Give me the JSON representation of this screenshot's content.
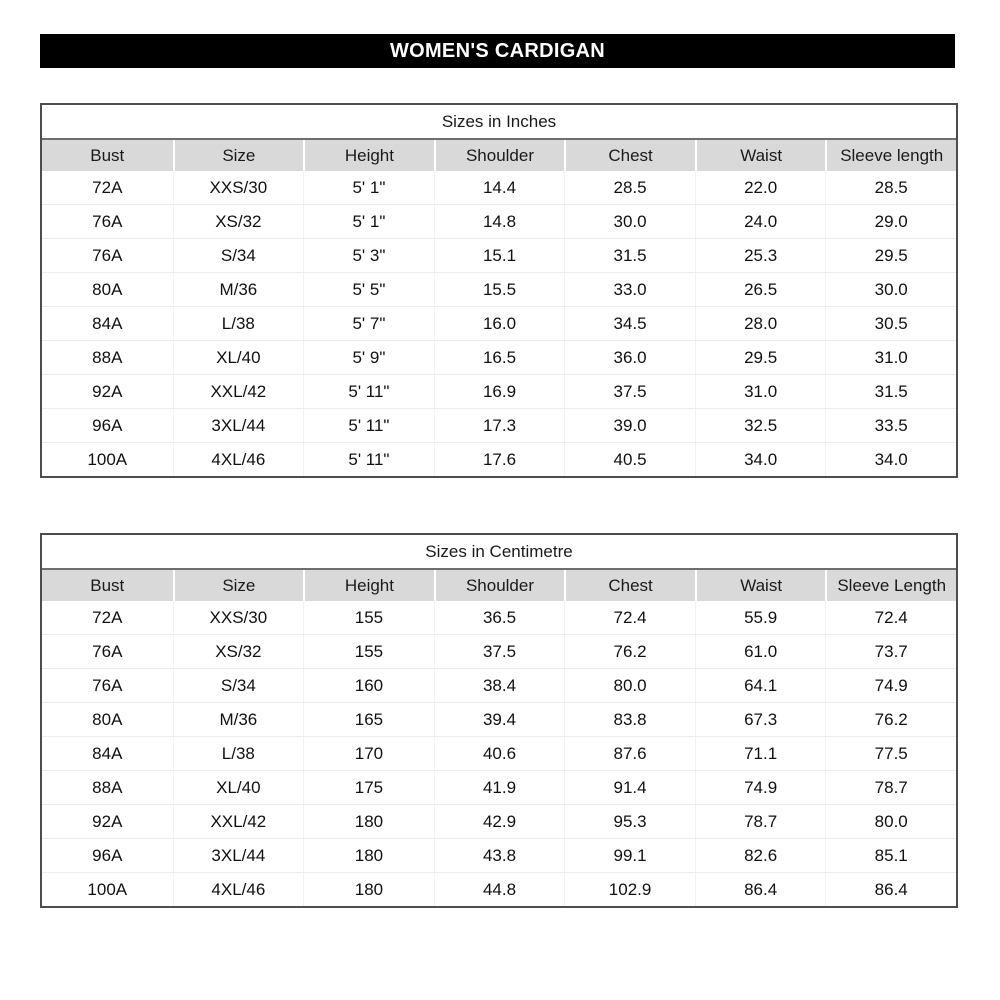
{
  "page_title": "WOMEN'S CARDIGAN",
  "colors": {
    "title_bar_bg": "#000000",
    "title_bar_text": "#ffffff",
    "table_border": "#4d4d4d",
    "header_bg": "#d9d9d9",
    "grid_line": "#ececec"
  },
  "tables": [
    {
      "title": "Sizes in Inches",
      "columns": [
        "Bust",
        "Size",
        "Height",
        "Shoulder",
        "Chest",
        "Waist",
        "Sleeve length"
      ],
      "rows": [
        [
          "72A",
          "XXS/30",
          "5' 1\"",
          "14.4",
          "28.5",
          "22.0",
          "28.5"
        ],
        [
          "76A",
          "XS/32",
          "5' 1\"",
          "14.8",
          "30.0",
          "24.0",
          "29.0"
        ],
        [
          "76A",
          "S/34",
          "5' 3\"",
          "15.1",
          "31.5",
          "25.3",
          "29.5"
        ],
        [
          "80A",
          "M/36",
          "5' 5\"",
          "15.5",
          "33.0",
          "26.5",
          "30.0"
        ],
        [
          "84A",
          "L/38",
          "5' 7\"",
          "16.0",
          "34.5",
          "28.0",
          "30.5"
        ],
        [
          "88A",
          "XL/40",
          "5' 9\"",
          "16.5",
          "36.0",
          "29.5",
          "31.0"
        ],
        [
          "92A",
          "XXL/42",
          "5' 11\"",
          "16.9",
          "37.5",
          "31.0",
          "31.5"
        ],
        [
          "96A",
          "3XL/44",
          "5' 11\"",
          "17.3",
          "39.0",
          "32.5",
          "33.5"
        ],
        [
          "100A",
          "4XL/46",
          "5' 11\"",
          "17.6",
          "40.5",
          "34.0",
          "34.0"
        ]
      ]
    },
    {
      "title": "Sizes in Centimetre",
      "columns": [
        "Bust",
        "Size",
        "Height",
        "Shoulder",
        "Chest",
        "Waist",
        "Sleeve Length"
      ],
      "rows": [
        [
          "72A",
          "XXS/30",
          "155",
          "36.5",
          "72.4",
          "55.9",
          "72.4"
        ],
        [
          "76A",
          "XS/32",
          "155",
          "37.5",
          "76.2",
          "61.0",
          "73.7"
        ],
        [
          "76A",
          "S/34",
          "160",
          "38.4",
          "80.0",
          "64.1",
          "74.9"
        ],
        [
          "80A",
          "M/36",
          "165",
          "39.4",
          "83.8",
          "67.3",
          "76.2"
        ],
        [
          "84A",
          "L/38",
          "170",
          "40.6",
          "87.6",
          "71.1",
          "77.5"
        ],
        [
          "88A",
          "XL/40",
          "175",
          "41.9",
          "91.4",
          "74.9",
          "78.7"
        ],
        [
          "92A",
          "XXL/42",
          "180",
          "42.9",
          "95.3",
          "78.7",
          "80.0"
        ],
        [
          "96A",
          "3XL/44",
          "180",
          "43.8",
          "99.1",
          "82.6",
          "85.1"
        ],
        [
          "100A",
          "4XL/46",
          "180",
          "44.8",
          "102.9",
          "86.4",
          "86.4"
        ]
      ]
    }
  ]
}
